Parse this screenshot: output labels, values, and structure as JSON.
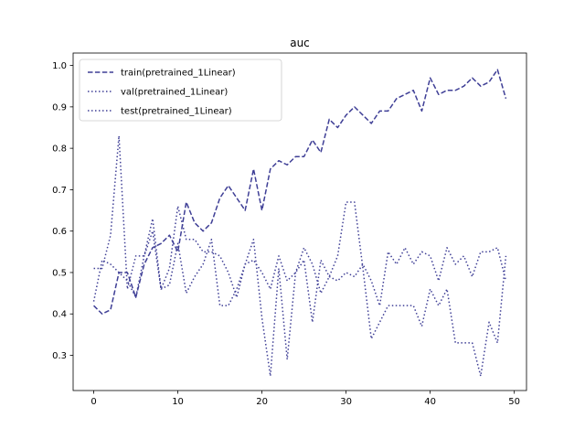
{
  "chart_data": {
    "type": "line",
    "title": "auc",
    "xlabel": "",
    "ylabel": "",
    "xlim": [
      -2.45,
      51.45
    ],
    "ylim": [
      0.215,
      1.03
    ],
    "xticks": [
      0,
      10,
      20,
      30,
      40,
      50
    ],
    "yticks": [
      0.3,
      0.4,
      0.5,
      0.6,
      0.7,
      0.8,
      0.9,
      1.0
    ],
    "ytick_labels": [
      "0.3",
      "0.4",
      "0.5",
      "0.6",
      "0.7",
      "0.8",
      "0.9",
      "1.0"
    ],
    "grid": false,
    "legend_position": "top-left",
    "x": [
      0,
      1,
      2,
      3,
      4,
      5,
      6,
      7,
      8,
      9,
      10,
      11,
      12,
      13,
      14,
      15,
      16,
      17,
      18,
      19,
      20,
      21,
      22,
      23,
      24,
      25,
      26,
      27,
      28,
      29,
      30,
      31,
      32,
      33,
      34,
      35,
      36,
      37,
      38,
      39,
      40,
      41,
      42,
      43,
      44,
      45,
      46,
      47,
      48,
      49
    ],
    "series": [
      {
        "name": "train(pretrained_1Linear)",
        "style": "dashed",
        "color": "#3f3f96",
        "values": [
          0.42,
          0.4,
          0.41,
          0.5,
          0.5,
          0.44,
          0.52,
          0.56,
          0.57,
          0.59,
          0.55,
          0.67,
          0.62,
          0.6,
          0.62,
          0.68,
          0.71,
          0.68,
          0.65,
          0.75,
          0.65,
          0.75,
          0.77,
          0.76,
          0.78,
          0.78,
          0.82,
          0.79,
          0.87,
          0.85,
          0.88,
          0.9,
          0.88,
          0.86,
          0.89,
          0.89,
          0.92,
          0.93,
          0.94,
          0.89,
          0.97,
          0.93,
          0.94,
          0.94,
          0.95,
          0.97,
          0.95,
          0.96,
          0.99,
          0.92
        ]
      },
      {
        "name": "val(pretrained_1Linear)",
        "style": "dotted",
        "color": "#3f3f96",
        "values": [
          0.43,
          0.53,
          0.52,
          0.5,
          0.48,
          0.44,
          0.54,
          0.63,
          0.46,
          0.47,
          0.57,
          0.45,
          0.49,
          0.52,
          0.58,
          0.42,
          0.42,
          0.46,
          0.52,
          0.58,
          0.39,
          0.25,
          0.51,
          0.29,
          0.5,
          0.56,
          0.52,
          0.45,
          0.49,
          0.54,
          0.67,
          0.67,
          0.51,
          0.34,
          0.38,
          0.42,
          0.42,
          0.42,
          0.42,
          0.37,
          0.46,
          0.42,
          0.46,
          0.33,
          0.33,
          0.33,
          0.25,
          0.38,
          0.33,
          0.54
        ]
      },
      {
        "name": "test(pretrained_1Linear)",
        "style": "dotted",
        "color": "#3f3f96",
        "values": [
          0.51,
          0.51,
          0.59,
          0.83,
          0.46,
          0.54,
          0.54,
          0.6,
          0.46,
          0.51,
          0.66,
          0.58,
          0.58,
          0.55,
          0.55,
          0.54,
          0.5,
          0.44,
          0.52,
          0.53,
          0.5,
          0.46,
          0.54,
          0.48,
          0.5,
          0.53,
          0.38,
          0.53,
          0.49,
          0.48,
          0.5,
          0.49,
          0.52,
          0.48,
          0.42,
          0.55,
          0.52,
          0.56,
          0.52,
          0.55,
          0.54,
          0.48,
          0.56,
          0.52,
          0.54,
          0.49,
          0.55,
          0.55,
          0.56,
          0.48
        ]
      }
    ]
  }
}
